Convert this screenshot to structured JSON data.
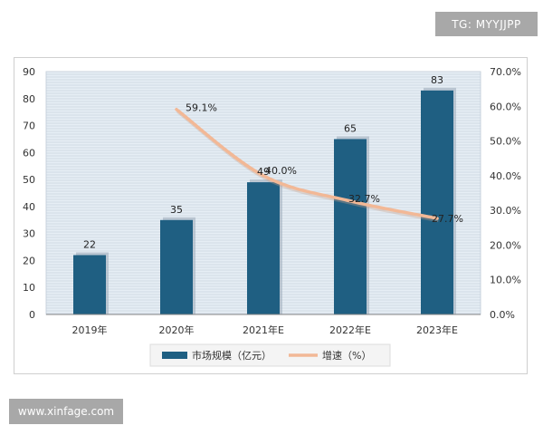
{
  "watermarks": {
    "top": "TG: MYYJJPP",
    "bottom": "www.xinfage.com"
  },
  "colors": {
    "bar": "#1f5f82",
    "line": "#f2b896",
    "grid": "#b9c6d3",
    "plot_bg": "#e6eef5"
  },
  "chart_data": {
    "type": "bar",
    "categories": [
      "2019年",
      "2020年",
      "2021年E",
      "2022年E",
      "2023年E"
    ],
    "series": [
      {
        "name": "市场规模（亿元）",
        "type": "bar",
        "axis": "left",
        "values": [
          22,
          35,
          49,
          65,
          83
        ],
        "labels": [
          "22",
          "35",
          "49",
          "65",
          "83"
        ]
      },
      {
        "name": "增速（%）",
        "type": "line",
        "axis": "right",
        "values": [
          null,
          59.1,
          40.0,
          32.7,
          27.7
        ],
        "labels": [
          "",
          "59.1%",
          "40.0%",
          "32.7%",
          "27.7%"
        ]
      }
    ],
    "y_left": {
      "min": 0,
      "max": 90,
      "ticks": [
        "0",
        "10",
        "20",
        "30",
        "40",
        "50",
        "60",
        "70",
        "80",
        "90"
      ]
    },
    "y_right": {
      "min": 0,
      "max": 70,
      "ticks": [
        "0.0%",
        "10.0%",
        "20.0%",
        "30.0%",
        "40.0%",
        "50.0%",
        "60.0%",
        "70.0%"
      ]
    },
    "grid": true,
    "legend_position": "bottom"
  }
}
